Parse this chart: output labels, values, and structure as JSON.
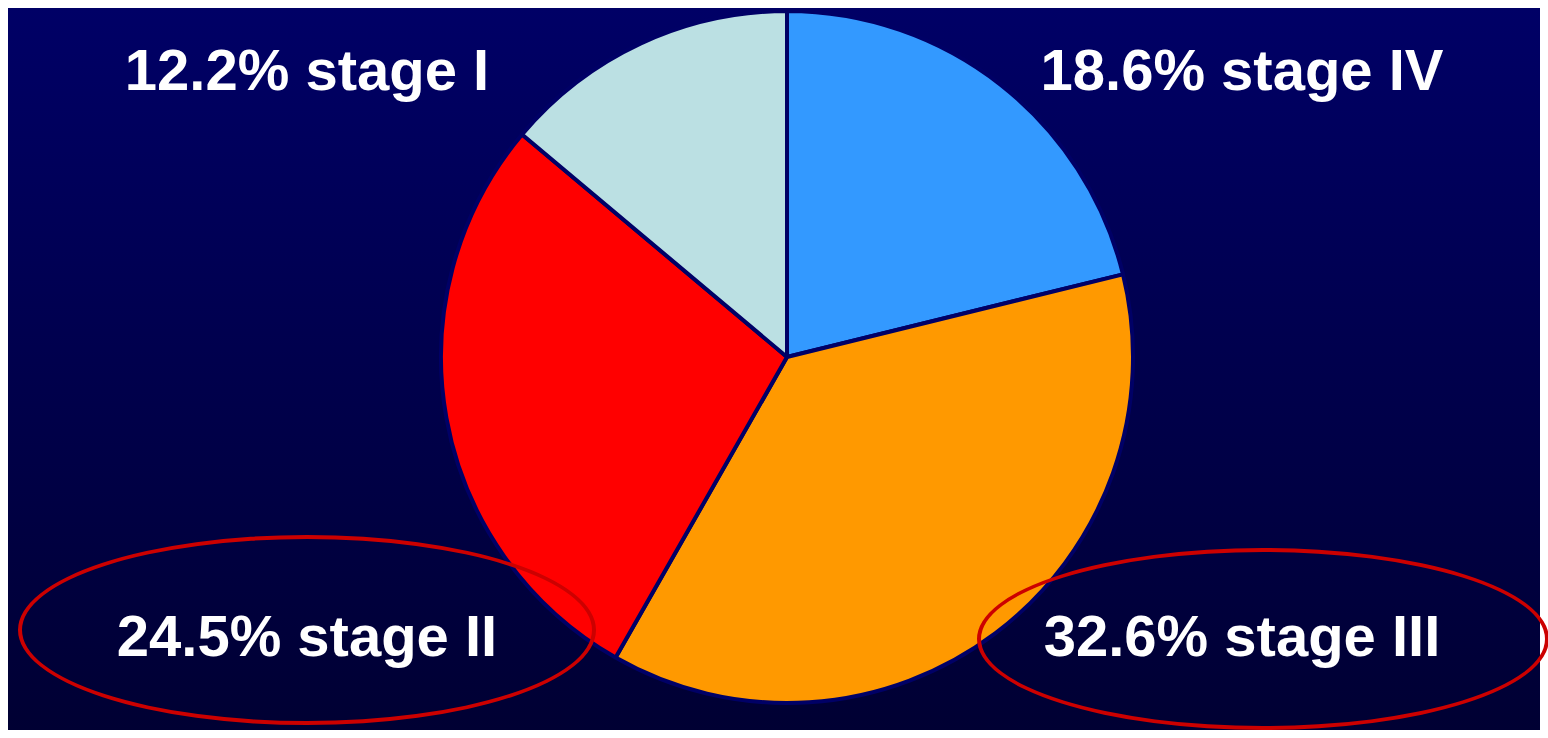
{
  "chart_data": {
    "type": "pie",
    "categories": [
      "stage IV",
      "stage III",
      "stage II",
      "stage I"
    ],
    "values": [
      18.6,
      32.6,
      24.5,
      12.2
    ],
    "value_labels": [
      "18.6%",
      "32.6%",
      "24.5%",
      "12.2%"
    ],
    "colors": [
      "#3399ff",
      "#ff9900",
      "#ff0000",
      "#bbe0e3"
    ],
    "legend": false
  }
}
